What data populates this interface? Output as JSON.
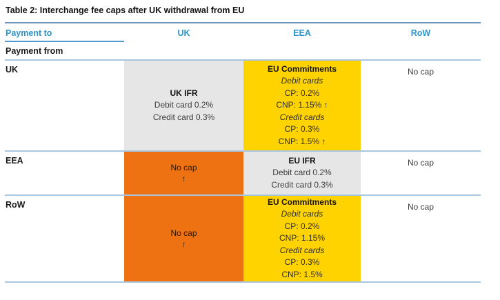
{
  "title": "Table 2: Interchange fee caps after UK withdrawal from EU",
  "colors": {
    "header_blue": "#2B95CB",
    "underline_blue": "#4D9BCE",
    "top_rule": "#6E96BC",
    "sep": "#A9C6E0",
    "gray": "#E6E6E6",
    "yellow": "#FFD300",
    "orange": "#EE7211"
  },
  "header": {
    "payment_to": "Payment to",
    "payment_from": "Payment from",
    "columns": [
      "UK",
      "EEA",
      "RoW"
    ]
  },
  "rows": [
    {
      "label": "UK",
      "uk": {
        "title": "UK IFR",
        "line1": "Debit card 0.2%",
        "line2": "Credit card 0.3%"
      },
      "eea": {
        "title": "EU Commitments",
        "debit_header": "Debit cards",
        "debit_cp": "CP: 0.2%",
        "debit_cnp": "CNP: 1.15% ↑",
        "credit_header": "Credit cards",
        "credit_cp": "CP: 0.3%",
        "credit_cnp": "CNP: 1.5% ↑"
      },
      "row": {
        "text": "No cap"
      }
    },
    {
      "label": "EEA",
      "uk": {
        "text": "No cap",
        "arrow": "↑"
      },
      "eea": {
        "title": "EU IFR",
        "line1": "Debit card 0.2%",
        "line2": "Credit card 0.3%"
      },
      "row": {
        "text": "No cap"
      }
    },
    {
      "label": "RoW",
      "uk": {
        "text": "No cap",
        "arrow": "↑"
      },
      "eea": {
        "title": "EU Commitments",
        "debit_header": "Debit cards",
        "debit_cp": "CP: 0.2%",
        "debit_cnp": "CNP: 1.15%",
        "credit_header": "Credit cards",
        "credit_cp": "CP: 0.3%",
        "credit_cnp": "CNP: 1.5%"
      },
      "row": {
        "text": "No cap"
      }
    }
  ]
}
